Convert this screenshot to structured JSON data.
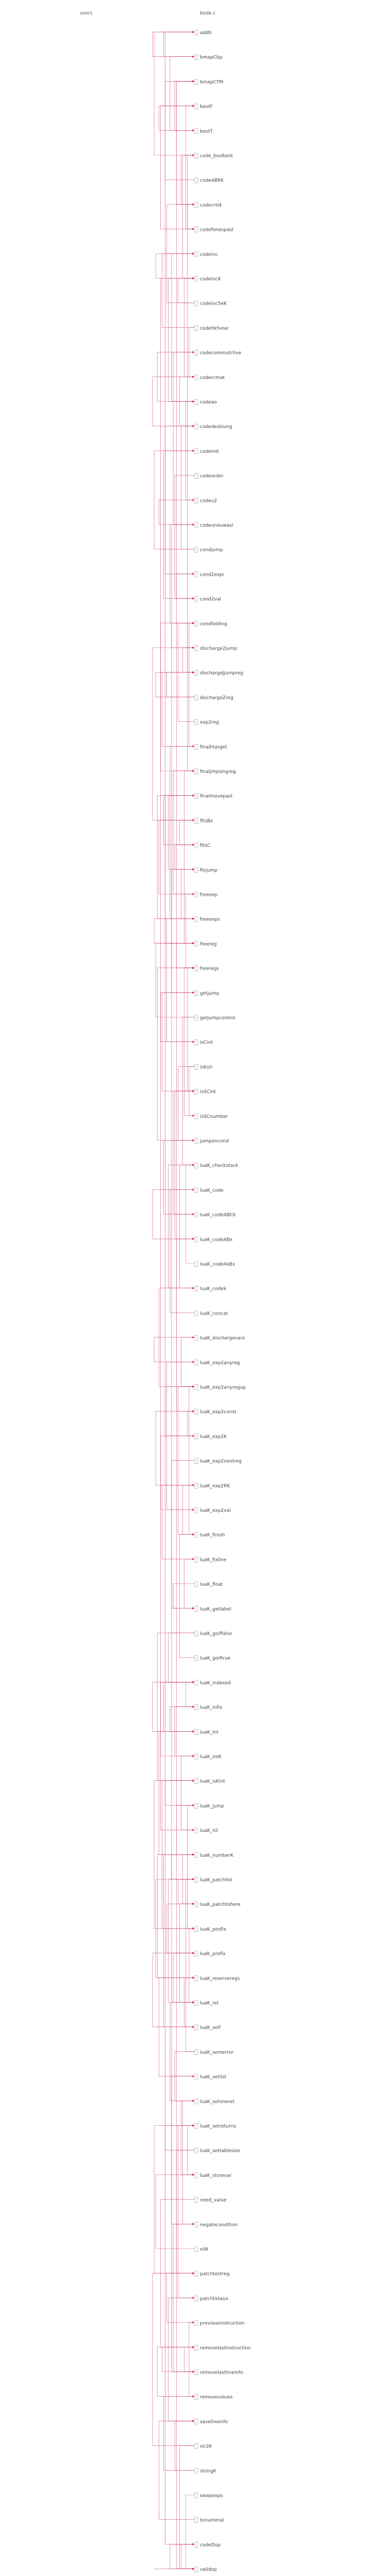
{
  "headers": {
    "left": "users",
    "right": "bode.c"
  },
  "colors": {
    "edge": "#c2185b",
    "node_border": "#aaaacc",
    "node_fill": "#ffffff",
    "text": "#444444"
  },
  "nodes": [
    "addb",
    "bmapCbp",
    "bmapCTM",
    "bestF",
    "bestT",
    "code_bsolbest",
    "codeABRK",
    "codecrtl4",
    "codefonespasl",
    "codeinc",
    "codeincK",
    "codeinc5eK",
    "codehkfvear",
    "codecommutchve",
    "codecrmat",
    "codeao",
    "codedeskiung",
    "codemd",
    "codeorder",
    "codeu2",
    "codeuneuwasl",
    "condjump",
    "cond2expr",
    "cond2val",
    "condfolding",
    "discharge2jump",
    "dischargeJjumpreg",
    "dischargeZreg",
    "exp2reg",
    "finalhtarget",
    "finaljmpsingreg",
    "finalmovepasl",
    "fitsBx",
    "fitsC",
    "fixjump",
    "freeexp",
    "freeexps",
    "freereg",
    "freeregs",
    "getjump",
    "getjumpcontrol",
    "isCint",
    "isKstr",
    "isSCint",
    "isSCnumber",
    "jumponcond",
    "luaK_checkstack",
    "luaK_code",
    "luaK_codeABCk",
    "luaK_codeABx",
    "luaK_codeAsBx",
    "luaK_codek",
    "luaK_concat",
    "luaK_dischargevars",
    "luaK_exp2anyreg",
    "luaK_exp2anyregup",
    "luaK_exp2const",
    "luaK_exp2K",
    "luaK_exp2nextreg",
    "luaK_exp2RK",
    "luaK_exp2val",
    "luaK_finish",
    "luaK_fixline",
    "luaK_float",
    "luaK_getlabel",
    "luaK_goiffalse",
    "luaK_goiftrue",
    "luaK_indexed",
    "luaK_infix",
    "luaK_int",
    "luaK_intK",
    "luaK_isKint",
    "luaK_jump",
    "luaK_nil",
    "luaK_numberK",
    "luaK_patchlist",
    "luaK_patchtohere",
    "luaK_posfix",
    "luaK_prefix",
    "luaK_reserveregs",
    "luaK_ret",
    "luaK_self",
    "luaK_semerror",
    "luaK_setlist",
    "luaK_setoneret",
    "luaK_setreturns",
    "luaK_settablesize",
    "luaK_storevar",
    "need_value",
    "negatecondition",
    "nilK",
    "patchtestreg",
    "patchlistaux",
    "previousinstruction",
    "removelastinstruction",
    "removelastlineinfo",
    "removevalues",
    "savelineinfo",
    "str2K",
    "stringK",
    "swapexps",
    "tonumeral",
    "codeDup",
    "validop"
  ]
}
